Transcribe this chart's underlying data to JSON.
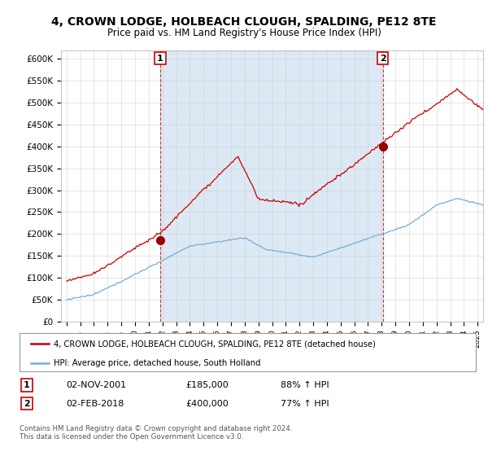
{
  "title": "4, CROWN LODGE, HOLBEACH CLOUGH, SPALDING, PE12 8TE",
  "subtitle": "Price paid vs. HM Land Registry's House Price Index (HPI)",
  "ylim": [
    0,
    620000
  ],
  "yticks": [
    0,
    50000,
    100000,
    150000,
    200000,
    250000,
    300000,
    350000,
    400000,
    450000,
    500000,
    550000,
    600000
  ],
  "xlim_start": 1994.6,
  "xlim_end": 2025.4,
  "background_color": "#ffffff",
  "shade_color": "#dce9f5",
  "grid_color": "#cccccc",
  "red_line_color": "#cc0000",
  "blue_line_color": "#7aadd4",
  "marker1_date": 2001.84,
  "marker1_value": 185000,
  "marker2_date": 2018.09,
  "marker2_value": 400000,
  "legend_red_label": "4, CROWN LODGE, HOLBEACH CLOUGH, SPALDING, PE12 8TE (detached house)",
  "legend_blue_label": "HPI: Average price, detached house, South Holland",
  "ann1_label": "1",
  "ann1_date": "02-NOV-2001",
  "ann1_price": "£185,000",
  "ann1_hpi": "88% ↑ HPI",
  "ann2_label": "2",
  "ann2_date": "02-FEB-2018",
  "ann2_price": "£400,000",
  "ann2_hpi": "77% ↑ HPI",
  "footer": "Contains HM Land Registry data © Crown copyright and database right 2024.\nThis data is licensed under the Open Government Licence v3.0."
}
